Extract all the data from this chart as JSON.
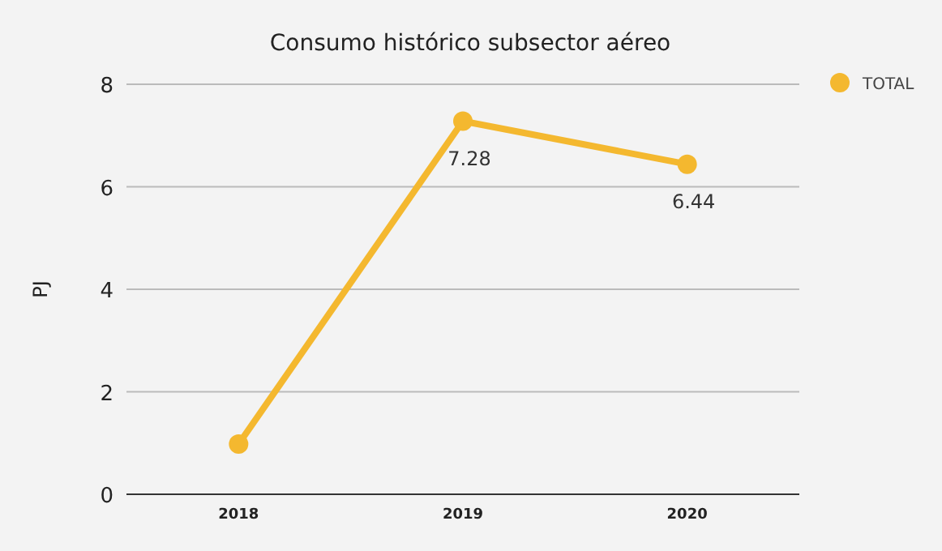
{
  "chart_data": {
    "type": "line",
    "title": "Consumo histórico subsector aéreo",
    "ylabel": "PJ",
    "categories": [
      "2018",
      "2019",
      "2020"
    ],
    "series": [
      {
        "name": "TOTAL",
        "color": "#f4b82f",
        "values": [
          0.98,
          7.28,
          6.44
        ],
        "value_labels": [
          null,
          "7.28",
          "6.44"
        ]
      }
    ],
    "ylim": [
      0,
      8
    ],
    "yticks": [
      0,
      2,
      4,
      6,
      8
    ],
    "grid": "y",
    "legend": "right",
    "marker": "circle",
    "line_style": "solid"
  }
}
